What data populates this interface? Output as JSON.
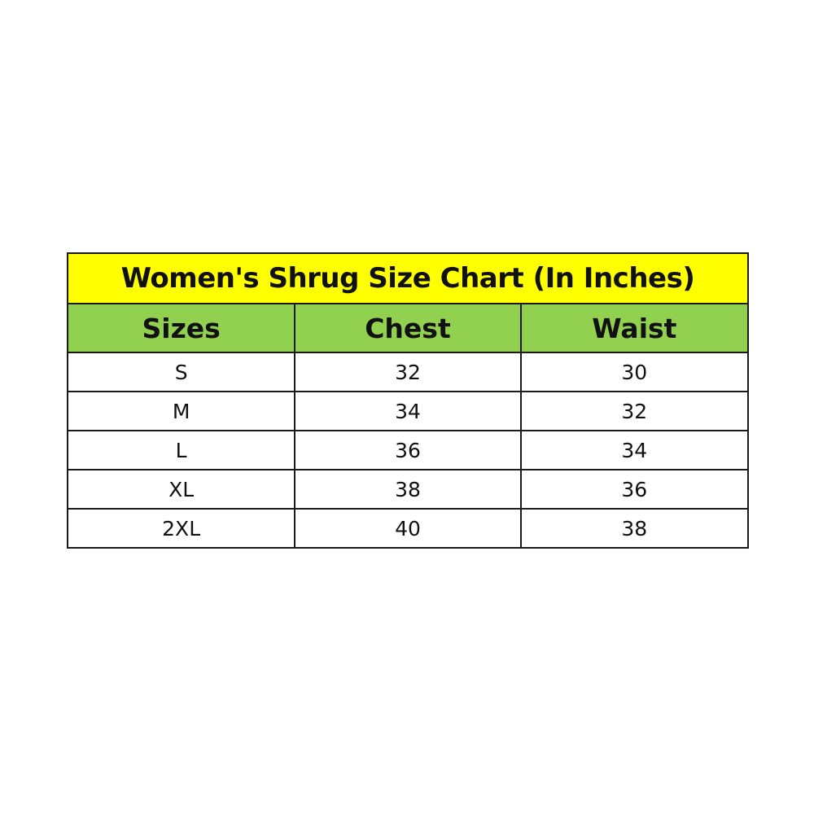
{
  "title": "Women's Shrug Size Chart (In Inches)",
  "colors": {
    "title_bg": "#FFFF00",
    "header_bg": "#92D050"
  },
  "headers": [
    "Sizes",
    "Chest",
    "Waist"
  ],
  "rows": [
    [
      "S",
      "32",
      "30"
    ],
    [
      "M",
      "34",
      "32"
    ],
    [
      "L",
      "36",
      "34"
    ],
    [
      "XL",
      "38",
      "36"
    ],
    [
      "2XL",
      "40",
      "38"
    ]
  ]
}
